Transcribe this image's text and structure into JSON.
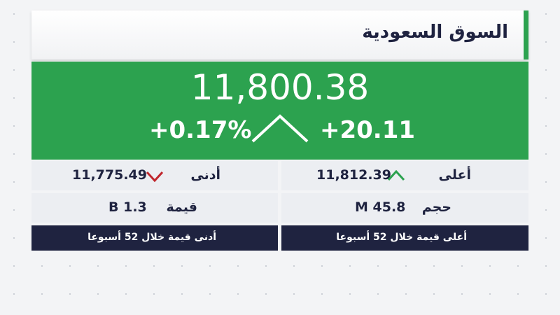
{
  "header": {
    "title": "السوق السعودية"
  },
  "index": {
    "value": "11,800.38",
    "change": "+20.11",
    "change_percent": "+0.17%"
  },
  "stats": {
    "low": {
      "label": "أدنى",
      "value": "11,775.49"
    },
    "high": {
      "label": "أعلى",
      "value": "11,812.39"
    },
    "turnover": {
      "label": "قيمة",
      "value": "B 1.3"
    },
    "volume": {
      "label": "حجم",
      "value": "M 45.8"
    }
  },
  "footer": {
    "low_52w": "أدنى قيمة خلال 52 أسبوعا",
    "high_52w": "أعلى قيمة خلال 52 أسبوعا"
  }
}
